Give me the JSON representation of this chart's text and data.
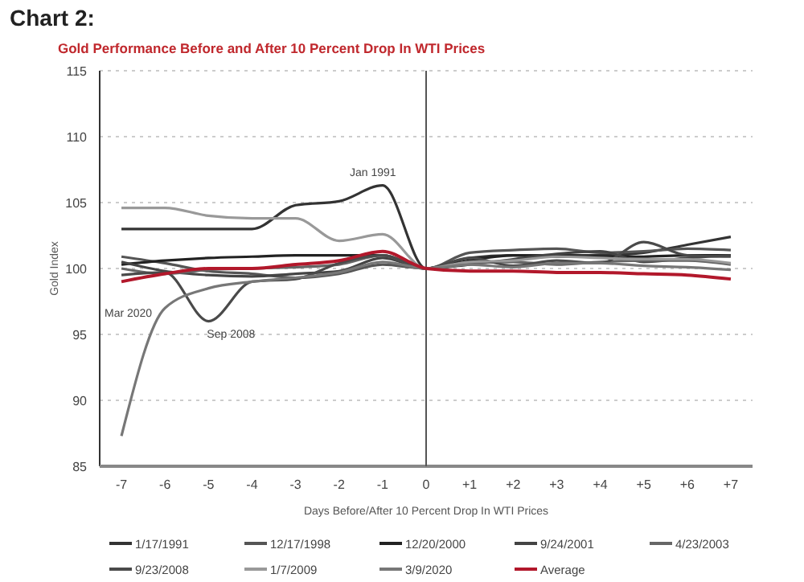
{
  "chart_data": {
    "type": "line",
    "title": "Chart 2:",
    "subtitle": "Gold Performance Before and After 10 Percent Drop In WTI Prices",
    "xlabel": "Days Before/After 10 Percent Drop In WTI Prices",
    "ylabel": "Gold Index",
    "x": [
      -7,
      -6,
      -5,
      -4,
      -3,
      -2,
      -1,
      0,
      1,
      2,
      3,
      4,
      5,
      6,
      7
    ],
    "xlim": [
      -7.5,
      7.5
    ],
    "xticks": [
      -7,
      -6,
      -5,
      -4,
      -3,
      -2,
      -1,
      0,
      {
        "value": 1,
        "label": "+1"
      },
      {
        "value": 2,
        "label": "+2"
      },
      {
        "value": 3,
        "label": "+3"
      },
      {
        "value": 4,
        "label": "+4"
      },
      {
        "value": 5,
        "label": "+5"
      },
      {
        "value": 6,
        "label": "+6"
      },
      {
        "value": 7,
        "label": "+7"
      }
    ],
    "ylim": [
      85,
      115
    ],
    "yticks": [
      85,
      90,
      95,
      100,
      105,
      110,
      115
    ],
    "grid": "y",
    "legend": "bottom",
    "line_style": "solid",
    "marker": "none",
    "ref_lines": [
      {
        "axis": "x",
        "value": 0,
        "color": "#555555"
      }
    ],
    "annotations": [
      {
        "text": "Jan 1991",
        "x": -1,
        "y": 106.3
      },
      {
        "text": "Sep 2008",
        "x": -5,
        "y": 96
      },
      "Mar 2020"
    ],
    "series": [
      {
        "name": "1/17/1991",
        "color": "#333333",
        "values": [
          103,
          103,
          103,
          103,
          104.8,
          105.1,
          106.3,
          100,
          100.8,
          101,
          101,
          101,
          101.2,
          101.8,
          102.4
        ]
      },
      {
        "name": "12/17/1998",
        "color": "#555555",
        "values": [
          100.9,
          100.4,
          99.8,
          99.6,
          99.3,
          99.6,
          100.3,
          100,
          101.2,
          101.4,
          101.5,
          101.2,
          101.3,
          101.5,
          101.4
        ]
      },
      {
        "name": "12/20/2000",
        "color": "#222222",
        "values": [
          100.3,
          100.6,
          100.8,
          100.9,
          101,
          101,
          101,
          100,
          100.6,
          101,
          100.9,
          100.9,
          100.9,
          101,
          101
        ]
      },
      {
        "name": "9/24/2001",
        "color": "#444444",
        "values": [
          100.5,
          99.8,
          99.5,
          99.4,
          99.6,
          99.8,
          100.8,
          100,
          100.3,
          100.7,
          101.1,
          101.3,
          100.5,
          100.8,
          101
        ]
      },
      {
        "name": "4/23/2003",
        "color": "#666666",
        "values": [
          100,
          99.6,
          99.9,
          100,
          100.1,
          100.3,
          101,
          100,
          100.4,
          100.5,
          100.3,
          100.5,
          100.6,
          100.6,
          100.3
        ]
      },
      {
        "name": "9/23/2008",
        "color": "#4a4a4a",
        "values": [
          99.5,
          99.7,
          96,
          99,
          99.2,
          100.4,
          101,
          100,
          100.8,
          100.2,
          100.6,
          100.4,
          102,
          101,
          100.9
        ]
      },
      {
        "name": "1/7/2009",
        "color": "#999999",
        "values": [
          104.6,
          104.6,
          104,
          103.8,
          103.8,
          102.1,
          102.6,
          100,
          100.5,
          100.6,
          100.9,
          100.8,
          100.7,
          100.7,
          100.4
        ]
      },
      {
        "name": "3/9/2020",
        "color": "#777777",
        "values": [
          87.3,
          97,
          98.5,
          99,
          99.3,
          99.7,
          100.5,
          100,
          100.3,
          100.1,
          100.4,
          100.4,
          100.2,
          100.1,
          99.9
        ]
      },
      {
        "name": "Average",
        "color": "#b2182b",
        "values": [
          99,
          99.6,
          100,
          100,
          100.3,
          100.6,
          101.3,
          100,
          99.8,
          99.8,
          99.7,
          99.7,
          99.6,
          99.5,
          99.2
        ]
      }
    ]
  }
}
